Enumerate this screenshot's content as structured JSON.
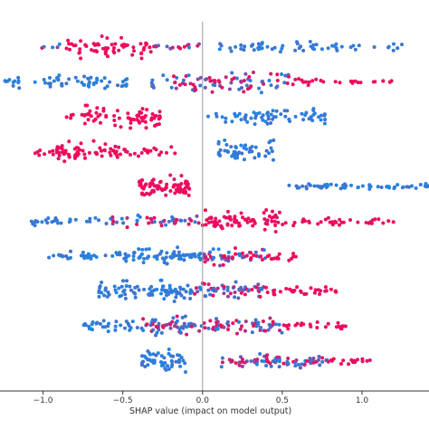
{
  "chart_data": {
    "type": "scatter",
    "subtype": "shap-beeswarm",
    "title": "",
    "xlabel": "SHAP value (impact on model output)",
    "ylabel": "",
    "xlim": [
      -1.27,
      1.42
    ],
    "xticks": [
      -1.0,
      -0.5,
      0.0,
      0.5,
      1.0
    ],
    "xtick_labels": [
      "−1.0",
      "−0.5",
      "0.0",
      "0.5",
      "1.0"
    ],
    "zero_line": 0.0,
    "grid": false,
    "legend": "none",
    "colors": {
      "low": "#1e88e5",
      "high": "#ff0052",
      "zero_line": "#999999",
      "axis": "#333333"
    },
    "features": [
      {
        "row": 1,
        "dots": 140,
        "segments": [
          [
            -1.03,
            -0.85,
            "mixed",
            0.3
          ],
          [
            -0.85,
            -0.3,
            "high",
            1.0
          ],
          [
            -0.3,
            0.02,
            "mixed",
            0.4
          ],
          [
            0.1,
            0.9,
            "low",
            0.55
          ],
          [
            0.9,
            1.25,
            "low",
            0.3
          ]
        ]
      },
      {
        "row": 2,
        "dots": 170,
        "segments": [
          [
            -1.27,
            -0.85,
            "low",
            0.6
          ],
          [
            -0.85,
            -0.45,
            "low",
            0.7
          ],
          [
            -0.32,
            0.0,
            "mixed",
            0.8
          ],
          [
            0.0,
            0.55,
            "mixed",
            0.9
          ],
          [
            0.55,
            1.2,
            "high",
            0.35
          ]
        ]
      },
      {
        "row": 3,
        "dots": 140,
        "segments": [
          [
            -0.87,
            -0.72,
            "high",
            0.3
          ],
          [
            -0.75,
            -0.25,
            "high",
            1.0
          ],
          [
            0.02,
            0.32,
            "low",
            0.45
          ],
          [
            0.32,
            0.78,
            "low",
            0.8
          ]
        ]
      },
      {
        "row": 4,
        "dots": 140,
        "segments": [
          [
            -1.05,
            -0.85,
            "high",
            0.4
          ],
          [
            -0.92,
            -0.52,
            "high",
            0.9
          ],
          [
            -0.52,
            -0.15,
            "high",
            0.4
          ],
          [
            0.1,
            0.45,
            "low",
            1.0
          ]
        ]
      },
      {
        "row": 5,
        "dots": 140,
        "segments": [
          [
            -0.4,
            -0.08,
            "high",
            1.0
          ],
          [
            0.45,
            1.42,
            "low",
            0.25
          ]
        ]
      },
      {
        "row": 6,
        "dots": 180,
        "segments": [
          [
            -1.1,
            -0.6,
            "low",
            0.35
          ],
          [
            -0.6,
            0.0,
            "mixed",
            0.5
          ],
          [
            0.0,
            0.5,
            "high",
            1.0
          ],
          [
            0.5,
            1.2,
            "high",
            0.35
          ]
        ]
      },
      {
        "row": 7,
        "dots": 170,
        "segments": [
          [
            -0.97,
            -0.55,
            "low",
            0.4
          ],
          [
            -0.55,
            0.0,
            "low",
            0.75
          ],
          [
            0.0,
            0.4,
            "mixed",
            0.8
          ],
          [
            0.4,
            0.6,
            "high",
            0.4
          ]
        ]
      },
      {
        "row": 8,
        "dots": 180,
        "segments": [
          [
            -0.66,
            -0.05,
            "low",
            0.9
          ],
          [
            -0.05,
            0.4,
            "mixed",
            0.8
          ],
          [
            0.4,
            0.85,
            "high",
            0.45
          ]
        ]
      },
      {
        "row": 9,
        "dots": 170,
        "segments": [
          [
            -0.75,
            -0.4,
            "low",
            0.5
          ],
          [
            -0.4,
            0.0,
            "mixed",
            0.8
          ],
          [
            0.0,
            0.5,
            "mixed",
            0.7
          ],
          [
            0.5,
            0.9,
            "high",
            0.35
          ]
        ]
      },
      {
        "row": 10,
        "dots": 150,
        "segments": [
          [
            -0.38,
            -0.1,
            "low",
            1.0
          ],
          [
            0.1,
            0.8,
            "mixed",
            0.6
          ],
          [
            0.8,
            1.05,
            "high",
            0.3
          ]
        ]
      }
    ]
  }
}
